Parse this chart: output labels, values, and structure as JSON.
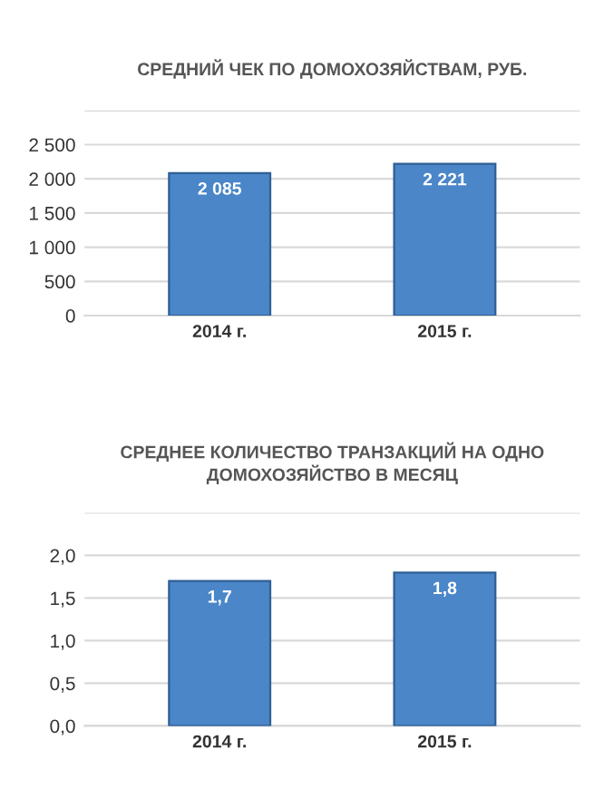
{
  "chart_data": [
    {
      "type": "bar",
      "title": "СРЕДНИЙ ЧЕК ПО ДОМОХОЗЯЙСТВАМ, РУБ.",
      "categories": [
        "2014 г.",
        "2015 г."
      ],
      "values": [
        2085,
        2221
      ],
      "value_labels": [
        "2 085",
        "2 221"
      ],
      "color": "#4a86c8",
      "ylim": [
        0,
        3000
      ],
      "yticks": [
        0,
        500,
        {
          "value": 1000,
          "label": "1 000"
        },
        {
          "value": 1500,
          "label": "1 500"
        },
        {
          "value": 2000,
          "label": "2 000"
        },
        {
          "value": 2500,
          "label": "2 500"
        },
        {
          "value": 3000,
          "label": null
        }
      ],
      "grid": "y"
    },
    {
      "type": "bar",
      "title": "СРЕДНЕЕ КОЛИЧЕСТВО ТРАНЗАКЦИЙ НА ОДНО ДОМОХОЗЯЙСТВО В МЕСЯЦ",
      "categories": [
        "2014 г.",
        "2015 г."
      ],
      "values": [
        1.7,
        1.8
      ],
      "value_labels": [
        "1,7",
        "1,8"
      ],
      "color": "#4a86c8",
      "ylim": [
        0,
        2.5
      ],
      "yticks": [
        {
          "value": 0,
          "label": "0,0"
        },
        {
          "value": 0.5,
          "label": "0,5"
        },
        {
          "value": 1,
          "label": "1,0"
        },
        {
          "value": 1.5,
          "label": "1,5"
        },
        {
          "value": 2,
          "label": "2,0"
        },
        {
          "value": 2.5,
          "label": null
        }
      ],
      "grid": "y"
    }
  ]
}
